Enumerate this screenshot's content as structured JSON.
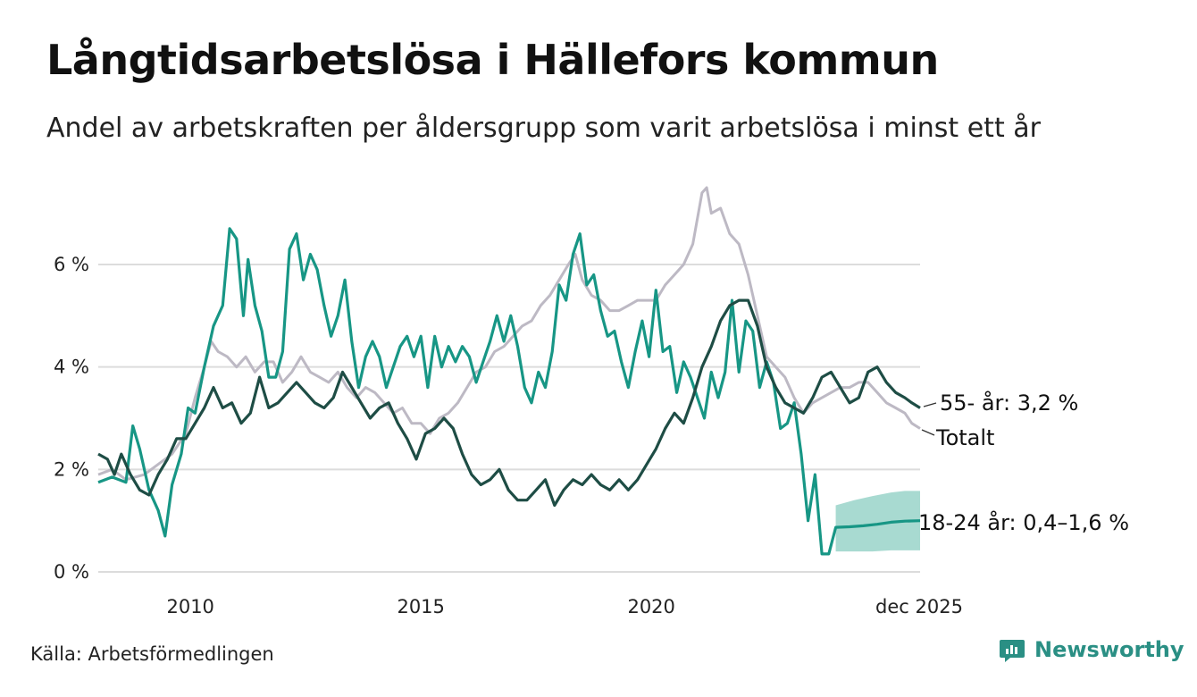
{
  "title": "Långtidsarbetslösa i Hällefors kommun",
  "subtitle": "Andel av arbetskraften per åldersgrupp som varit arbetslösa i minst ett år",
  "source": "Källa: Arbetsförmedlingen",
  "brand": "Newsworthy",
  "colors": {
    "total": "#bdb9c4",
    "age55": "#1e4d45",
    "age1824": "#179685",
    "band": "#a3d8cf",
    "grid": "#dcdcdc"
  },
  "chart_data": {
    "type": "line",
    "title": "Långtidsarbetslösa i Hällefors kommun",
    "xlabel": "",
    "ylabel": "",
    "xlim": [
      2008.0,
      2025.83
    ],
    "ylim": [
      0,
      7.5
    ],
    "y_ticks": [
      {
        "value": 0,
        "label": "0 %"
      },
      {
        "value": 2,
        "label": "2 %"
      },
      {
        "value": 4,
        "label": "4 %"
      },
      {
        "value": 6,
        "label": "6 %"
      }
    ],
    "x_ticks": [
      {
        "value": 2010,
        "label": "2010"
      },
      {
        "value": 2015,
        "label": "2015"
      },
      {
        "value": 2020,
        "label": "2020"
      },
      {
        "value": 2025.92,
        "label": "dec 2025"
      }
    ],
    "series": [
      {
        "name": "Totalt",
        "key": "total",
        "label": "Totalt",
        "points": [
          [
            2008.0,
            1.9
          ],
          [
            2008.3,
            2.0
          ],
          [
            2008.6,
            1.8
          ],
          [
            2009.0,
            1.9
          ],
          [
            2009.3,
            2.1
          ],
          [
            2009.6,
            2.3
          ],
          [
            2009.9,
            2.7
          ],
          [
            2010.1,
            3.4
          ],
          [
            2010.3,
            4.0
          ],
          [
            2010.45,
            4.5
          ],
          [
            2010.6,
            4.3
          ],
          [
            2010.8,
            4.2
          ],
          [
            2011.0,
            4.0
          ],
          [
            2011.2,
            4.2
          ],
          [
            2011.4,
            3.9
          ],
          [
            2011.6,
            4.1
          ],
          [
            2011.8,
            4.1
          ],
          [
            2012.0,
            3.7
          ],
          [
            2012.2,
            3.9
          ],
          [
            2012.4,
            4.2
          ],
          [
            2012.6,
            3.9
          ],
          [
            2012.8,
            3.8
          ],
          [
            2013.0,
            3.7
          ],
          [
            2013.2,
            3.9
          ],
          [
            2013.4,
            3.6
          ],
          [
            2013.6,
            3.4
          ],
          [
            2013.8,
            3.6
          ],
          [
            2014.0,
            3.5
          ],
          [
            2014.2,
            3.3
          ],
          [
            2014.4,
            3.1
          ],
          [
            2014.6,
            3.2
          ],
          [
            2014.8,
            2.9
          ],
          [
            2015.0,
            2.9
          ],
          [
            2015.2,
            2.7
          ],
          [
            2015.4,
            3.0
          ],
          [
            2015.6,
            3.1
          ],
          [
            2015.8,
            3.3
          ],
          [
            2016.0,
            3.6
          ],
          [
            2016.2,
            3.9
          ],
          [
            2016.4,
            4.0
          ],
          [
            2016.6,
            4.3
          ],
          [
            2016.8,
            4.4
          ],
          [
            2017.0,
            4.6
          ],
          [
            2017.2,
            4.8
          ],
          [
            2017.4,
            4.9
          ],
          [
            2017.6,
            5.2
          ],
          [
            2017.8,
            5.4
          ],
          [
            2018.0,
            5.7
          ],
          [
            2018.2,
            6.0
          ],
          [
            2018.35,
            6.2
          ],
          [
            2018.5,
            5.7
          ],
          [
            2018.7,
            5.4
          ],
          [
            2018.9,
            5.3
          ],
          [
            2019.1,
            5.1
          ],
          [
            2019.3,
            5.1
          ],
          [
            2019.5,
            5.2
          ],
          [
            2019.7,
            5.3
          ],
          [
            2019.9,
            5.3
          ],
          [
            2020.1,
            5.3
          ],
          [
            2020.3,
            5.6
          ],
          [
            2020.5,
            5.8
          ],
          [
            2020.7,
            6.0
          ],
          [
            2020.9,
            6.4
          ],
          [
            2021.1,
            7.4
          ],
          [
            2021.2,
            7.5
          ],
          [
            2021.3,
            7.0
          ],
          [
            2021.5,
            7.1
          ],
          [
            2021.7,
            6.6
          ],
          [
            2021.9,
            6.4
          ],
          [
            2022.1,
            5.8
          ],
          [
            2022.3,
            5.0
          ],
          [
            2022.5,
            4.2
          ],
          [
            2022.7,
            4.0
          ],
          [
            2022.9,
            3.8
          ],
          [
            2023.1,
            3.4
          ],
          [
            2023.3,
            3.1
          ],
          [
            2023.5,
            3.3
          ],
          [
            2023.7,
            3.4
          ],
          [
            2023.9,
            3.5
          ],
          [
            2024.1,
            3.6
          ],
          [
            2024.3,
            3.6
          ],
          [
            2024.5,
            3.7
          ],
          [
            2024.7,
            3.7
          ],
          [
            2024.9,
            3.5
          ],
          [
            2025.1,
            3.3
          ],
          [
            2025.3,
            3.2
          ],
          [
            2025.5,
            3.1
          ],
          [
            2025.65,
            2.9
          ],
          [
            2025.83,
            2.8
          ]
        ]
      },
      {
        "name": "55- år",
        "key": "age55",
        "label": "55- år: 3,2 %",
        "points": [
          [
            2008.0,
            2.3
          ],
          [
            2008.2,
            2.2
          ],
          [
            2008.35,
            1.9
          ],
          [
            2008.5,
            2.3
          ],
          [
            2008.7,
            1.9
          ],
          [
            2008.9,
            1.6
          ],
          [
            2009.1,
            1.5
          ],
          [
            2009.3,
            1.9
          ],
          [
            2009.5,
            2.2
          ],
          [
            2009.7,
            2.6
          ],
          [
            2009.9,
            2.6
          ],
          [
            2010.1,
            2.9
          ],
          [
            2010.3,
            3.2
          ],
          [
            2010.5,
            3.6
          ],
          [
            2010.7,
            3.2
          ],
          [
            2010.9,
            3.3
          ],
          [
            2011.1,
            2.9
          ],
          [
            2011.3,
            3.1
          ],
          [
            2011.5,
            3.8
          ],
          [
            2011.7,
            3.2
          ],
          [
            2011.9,
            3.3
          ],
          [
            2012.1,
            3.5
          ],
          [
            2012.3,
            3.7
          ],
          [
            2012.5,
            3.5
          ],
          [
            2012.7,
            3.3
          ],
          [
            2012.9,
            3.2
          ],
          [
            2013.1,
            3.4
          ],
          [
            2013.3,
            3.9
          ],
          [
            2013.5,
            3.6
          ],
          [
            2013.7,
            3.3
          ],
          [
            2013.9,
            3.0
          ],
          [
            2014.1,
            3.2
          ],
          [
            2014.3,
            3.3
          ],
          [
            2014.5,
            2.9
          ],
          [
            2014.7,
            2.6
          ],
          [
            2014.9,
            2.2
          ],
          [
            2015.1,
            2.7
          ],
          [
            2015.3,
            2.8
          ],
          [
            2015.5,
            3.0
          ],
          [
            2015.7,
            2.8
          ],
          [
            2015.9,
            2.3
          ],
          [
            2016.1,
            1.9
          ],
          [
            2016.3,
            1.7
          ],
          [
            2016.5,
            1.8
          ],
          [
            2016.7,
            2.0
          ],
          [
            2016.9,
            1.6
          ],
          [
            2017.1,
            1.4
          ],
          [
            2017.3,
            1.4
          ],
          [
            2017.5,
            1.6
          ],
          [
            2017.7,
            1.8
          ],
          [
            2017.9,
            1.3
          ],
          [
            2018.1,
            1.6
          ],
          [
            2018.3,
            1.8
          ],
          [
            2018.5,
            1.7
          ],
          [
            2018.7,
            1.9
          ],
          [
            2018.9,
            1.7
          ],
          [
            2019.1,
            1.6
          ],
          [
            2019.3,
            1.8
          ],
          [
            2019.5,
            1.6
          ],
          [
            2019.7,
            1.8
          ],
          [
            2019.9,
            2.1
          ],
          [
            2020.1,
            2.4
          ],
          [
            2020.3,
            2.8
          ],
          [
            2020.5,
            3.1
          ],
          [
            2020.7,
            2.9
          ],
          [
            2020.9,
            3.4
          ],
          [
            2021.1,
            4.0
          ],
          [
            2021.3,
            4.4
          ],
          [
            2021.5,
            4.9
          ],
          [
            2021.7,
            5.2
          ],
          [
            2021.9,
            5.3
          ],
          [
            2022.1,
            5.3
          ],
          [
            2022.3,
            4.8
          ],
          [
            2022.5,
            4.0
          ],
          [
            2022.7,
            3.6
          ],
          [
            2022.9,
            3.3
          ],
          [
            2023.1,
            3.2
          ],
          [
            2023.3,
            3.1
          ],
          [
            2023.5,
            3.4
          ],
          [
            2023.7,
            3.8
          ],
          [
            2023.9,
            3.9
          ],
          [
            2024.1,
            3.6
          ],
          [
            2024.3,
            3.3
          ],
          [
            2024.5,
            3.4
          ],
          [
            2024.7,
            3.9
          ],
          [
            2024.9,
            4.0
          ],
          [
            2025.1,
            3.7
          ],
          [
            2025.3,
            3.5
          ],
          [
            2025.5,
            3.4
          ],
          [
            2025.65,
            3.3
          ],
          [
            2025.83,
            3.2
          ]
        ]
      },
      {
        "name": "18-24 år",
        "key": "age1824",
        "label": "18-24 år: 0,4–1,6 %",
        "points": [
          [
            2008.0,
            1.75
          ],
          [
            2008.3,
            1.85
          ],
          [
            2008.6,
            1.75
          ],
          [
            2008.75,
            2.85
          ],
          [
            2008.9,
            2.4
          ],
          [
            2009.1,
            1.6
          ],
          [
            2009.3,
            1.2
          ],
          [
            2009.45,
            0.7
          ],
          [
            2009.6,
            1.7
          ],
          [
            2009.8,
            2.3
          ],
          [
            2009.95,
            3.2
          ],
          [
            2010.1,
            3.1
          ],
          [
            2010.3,
            4.0
          ],
          [
            2010.5,
            4.8
          ],
          [
            2010.7,
            5.2
          ],
          [
            2010.85,
            6.7
          ],
          [
            2011.0,
            6.5
          ],
          [
            2011.15,
            5.0
          ],
          [
            2011.25,
            6.1
          ],
          [
            2011.4,
            5.2
          ],
          [
            2011.55,
            4.7
          ],
          [
            2011.7,
            3.8
          ],
          [
            2011.85,
            3.8
          ],
          [
            2012.0,
            4.3
          ],
          [
            2012.15,
            6.3
          ],
          [
            2012.3,
            6.6
          ],
          [
            2012.45,
            5.7
          ],
          [
            2012.6,
            6.2
          ],
          [
            2012.75,
            5.9
          ],
          [
            2012.9,
            5.2
          ],
          [
            2013.05,
            4.6
          ],
          [
            2013.2,
            5.0
          ],
          [
            2013.35,
            5.7
          ],
          [
            2013.5,
            4.5
          ],
          [
            2013.65,
            3.6
          ],
          [
            2013.8,
            4.2
          ],
          [
            2013.95,
            4.5
          ],
          [
            2014.1,
            4.2
          ],
          [
            2014.25,
            3.6
          ],
          [
            2014.4,
            4.0
          ],
          [
            2014.55,
            4.4
          ],
          [
            2014.7,
            4.6
          ],
          [
            2014.85,
            4.2
          ],
          [
            2015.0,
            4.6
          ],
          [
            2015.15,
            3.6
          ],
          [
            2015.3,
            4.6
          ],
          [
            2015.45,
            4.0
          ],
          [
            2015.6,
            4.4
          ],
          [
            2015.75,
            4.1
          ],
          [
            2015.9,
            4.4
          ],
          [
            2016.05,
            4.2
          ],
          [
            2016.2,
            3.7
          ],
          [
            2016.35,
            4.1
          ],
          [
            2016.5,
            4.5
          ],
          [
            2016.65,
            5.0
          ],
          [
            2016.8,
            4.5
          ],
          [
            2016.95,
            5.0
          ],
          [
            2017.1,
            4.4
          ],
          [
            2017.25,
            3.6
          ],
          [
            2017.4,
            3.3
          ],
          [
            2017.55,
            3.9
          ],
          [
            2017.7,
            3.6
          ],
          [
            2017.85,
            4.3
          ],
          [
            2018.0,
            5.6
          ],
          [
            2018.15,
            5.3
          ],
          [
            2018.3,
            6.2
          ],
          [
            2018.45,
            6.6
          ],
          [
            2018.6,
            5.6
          ],
          [
            2018.75,
            5.8
          ],
          [
            2018.9,
            5.1
          ],
          [
            2019.05,
            4.6
          ],
          [
            2019.2,
            4.7
          ],
          [
            2019.35,
            4.1
          ],
          [
            2019.5,
            3.6
          ],
          [
            2019.65,
            4.3
          ],
          [
            2019.8,
            4.9
          ],
          [
            2019.95,
            4.2
          ],
          [
            2020.1,
            5.5
          ],
          [
            2020.25,
            4.3
          ],
          [
            2020.4,
            4.4
          ],
          [
            2020.55,
            3.5
          ],
          [
            2020.7,
            4.1
          ],
          [
            2020.85,
            3.8
          ],
          [
            2021.0,
            3.4
          ],
          [
            2021.15,
            3.0
          ],
          [
            2021.3,
            3.9
          ],
          [
            2021.45,
            3.4
          ],
          [
            2021.6,
            3.9
          ],
          [
            2021.75,
            5.3
          ],
          [
            2021.9,
            3.9
          ],
          [
            2022.05,
            4.9
          ],
          [
            2022.2,
            4.7
          ],
          [
            2022.35,
            3.6
          ],
          [
            2022.5,
            4.1
          ],
          [
            2022.65,
            3.7
          ],
          [
            2022.8,
            2.8
          ],
          [
            2022.95,
            2.9
          ],
          [
            2023.1,
            3.3
          ],
          [
            2023.25,
            2.3
          ],
          [
            2023.4,
            1.0
          ],
          [
            2023.55,
            1.9
          ],
          [
            2023.7,
            0.35
          ],
          [
            2023.85,
            0.35
          ],
          [
            2024.0,
            0.87
          ],
          [
            2024.3,
            0.88
          ],
          [
            2024.6,
            0.9
          ],
          [
            2024.9,
            0.93
          ],
          [
            2025.2,
            0.97
          ],
          [
            2025.5,
            0.99
          ],
          [
            2025.83,
            1.0
          ]
        ],
        "band": [
          [
            2024.0,
            0.4,
            1.3
          ],
          [
            2024.4,
            0.4,
            1.4
          ],
          [
            2024.8,
            0.4,
            1.48
          ],
          [
            2025.2,
            0.42,
            1.55
          ],
          [
            2025.5,
            0.42,
            1.58
          ],
          [
            2025.83,
            0.42,
            1.58
          ]
        ]
      }
    ]
  }
}
